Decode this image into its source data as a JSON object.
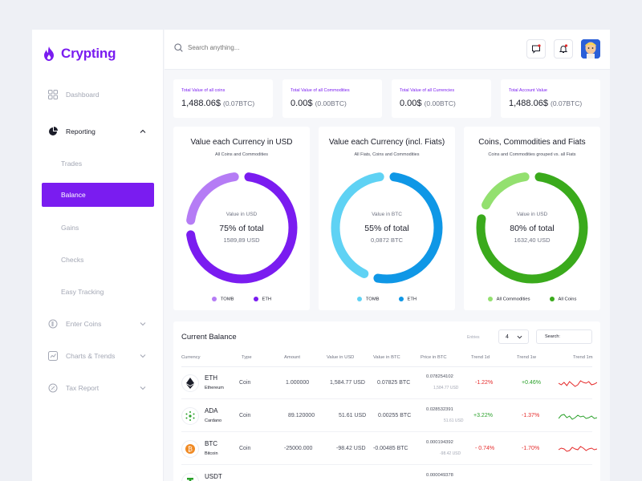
{
  "app": {
    "title": "Crypting"
  },
  "colors": {
    "brand": "#7a1cf0",
    "positive": "#2aa12a",
    "negative": "#e52a2a"
  },
  "sidebar": {
    "items": [
      {
        "label": "Dashboard",
        "icon": "grid-icon"
      },
      {
        "label": "Reporting",
        "icon": "pie-chart-icon"
      },
      {
        "label": "Enter Coins",
        "icon": "coin-icon"
      },
      {
        "label": "Charts & Trends",
        "icon": "chart-icon"
      },
      {
        "label": "Tax Report",
        "icon": "tax-icon"
      }
    ],
    "sub_items": [
      "Trades",
      "Balance",
      "Gains",
      "Checks",
      "Easy Tracking"
    ]
  },
  "search": {
    "placeholder": "Search anything..."
  },
  "stats": [
    {
      "label": "Total Value of all coins",
      "value": "1,488.06$",
      "btc": "(0.07BTC)"
    },
    {
      "label": "Total Value of all Commodities",
      "value": "0.00$",
      "btc": "(0.00BTC)"
    },
    {
      "label": "Total Value of all Currencies",
      "value": "0.00$",
      "btc": "(0.00BTC)"
    },
    {
      "label": "Total Account Value",
      "value": "1,488.06$",
      "btc": "(0.07BTC)"
    }
  ],
  "donuts": [
    {
      "title": "Value each Currency in USD",
      "subtitle": "All Coins and Commodities",
      "center_label": "Value in USD",
      "percent_text": "75% of total",
      "value_text": "1589,89 USD",
      "fraction": 0.75,
      "main_color": "#7a1cf0",
      "rest_color": "#b57cf5",
      "legend": [
        "TOMB",
        "ETH"
      ]
    },
    {
      "title": "Value each Currency (incl. Fiats)",
      "subtitle": "All Fiats, Coins and Commodities",
      "center_label": "Value in BTC",
      "percent_text": "55% of total",
      "value_text": "0,0872 BTC",
      "fraction": 0.55,
      "main_color": "#0f97e6",
      "rest_color": "#5fd2f4",
      "legend": [
        "TOMB",
        "ETH"
      ]
    },
    {
      "title": "Coins, Commodities and Fiats",
      "subtitle": "Coins and Commodities grouped vs. all Fiats",
      "center_label": "Value in USD",
      "percent_text": "80% of total",
      "value_text": "1632,40 USD",
      "fraction": 0.8,
      "main_color": "#3aaa1c",
      "rest_color": "#93e06f",
      "legend": [
        "All Commodities",
        "All Coins"
      ]
    }
  ],
  "balance": {
    "title": "Current Balance",
    "entries_label": "Entries",
    "entries_value": "4",
    "search_label": "Search:",
    "headers": [
      "Currency",
      "Type",
      "Amount",
      "Value in USD",
      "Value in BTC",
      "Price in BTC",
      "Trend 1d",
      "Trend 1w",
      "Trend 1m"
    ],
    "rows": [
      {
        "symbol": "ETH",
        "name": "Ethereum",
        "icon": "ethereum-icon",
        "type": "Coin",
        "amount": "1.000000",
        "usd": "1,584.77 USD",
        "btc": "0.07825 BTC",
        "price": "0.078254102",
        "price_usd": "1,584.77 USD",
        "d1": "-1.22%",
        "w1": "+0.46%",
        "trend_color": "#e52a2a"
      },
      {
        "symbol": "ADA",
        "name": "Cardano",
        "icon": "cardano-icon",
        "type": "Coin",
        "amount": "89.120000",
        "usd": "51.61 USD",
        "btc": "0.00255 BTC",
        "price": "0.028532391",
        "price_usd": "51.61 USD",
        "d1": "+3.22%",
        "w1": "-1.37%",
        "trend_color": "#2aa12a"
      },
      {
        "symbol": "BTC",
        "name": "Bitcoin",
        "icon": "bitcoin-icon",
        "type": "Coin",
        "amount": "-25000.000",
        "usd": "-98.42 USD",
        "btc": "-0.00485 BTC",
        "price": "0.000194392",
        "price_usd": "-98.42 USD",
        "d1": "- 0.74%",
        "w1": "-1.70%",
        "trend_color": "#e52a2a"
      },
      {
        "symbol": "USDT",
        "name": "",
        "icon": "tether-icon",
        "type": "",
        "amount": "",
        "usd": "",
        "btc": "",
        "price": "0.000049378",
        "price_usd": "",
        "d1": "",
        "w1": "",
        "trend_color": "#2aa12a"
      }
    ]
  }
}
